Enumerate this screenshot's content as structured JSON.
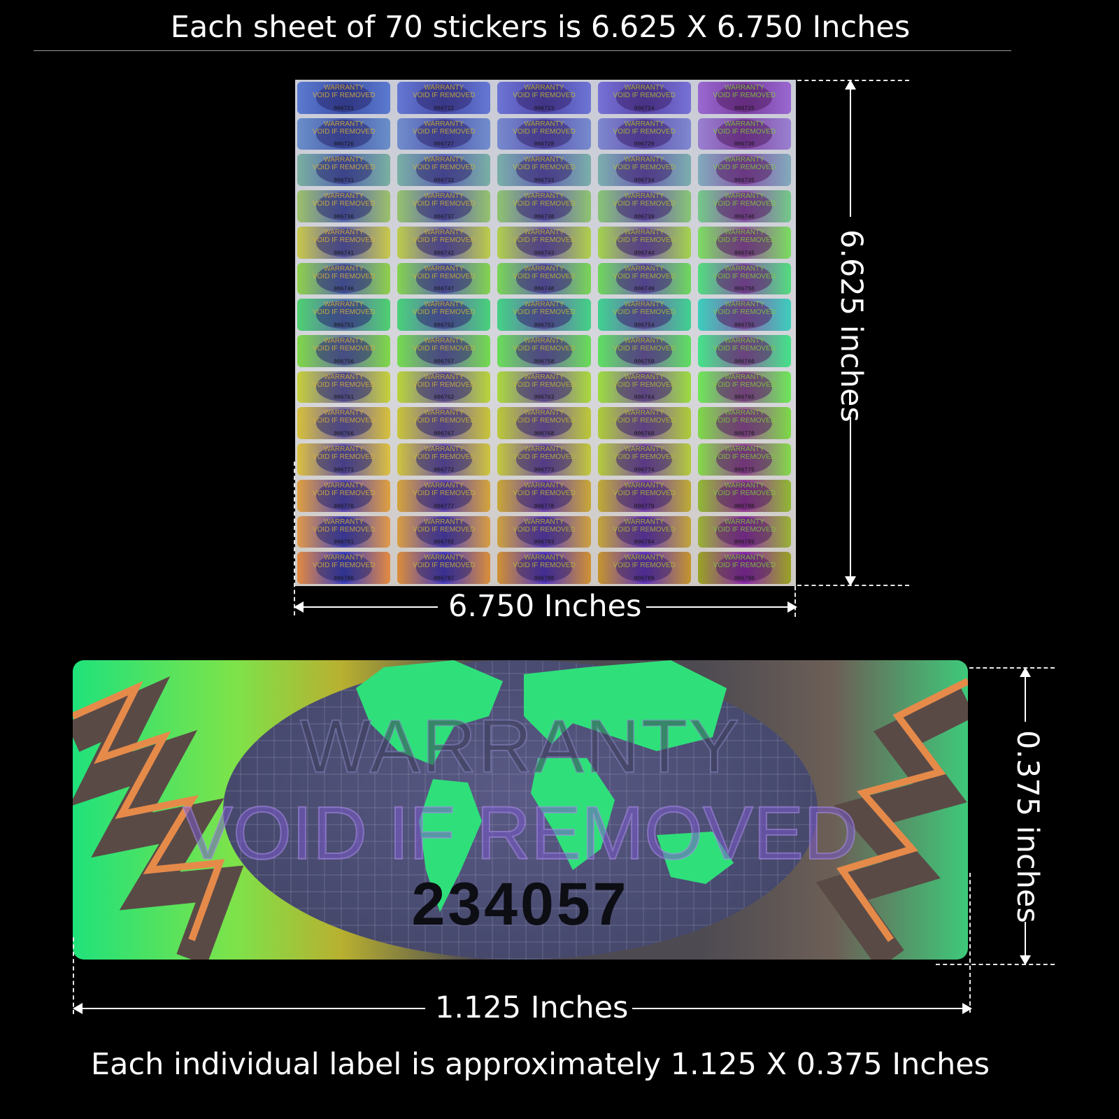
{
  "header": {
    "title": "Each sheet of 70 stickers is 6.625 X 6.750 Inches"
  },
  "sheet": {
    "rows": 14,
    "cols": 5,
    "count": 70,
    "text_line1": "WARRANTY",
    "text_line2": "VOID IF REMOVED",
    "serials": [
      "006721",
      "006722",
      "006723",
      "006724",
      "006725",
      "006726",
      "006727",
      "006728",
      "006729",
      "006730",
      "006731",
      "006732",
      "006733",
      "006734",
      "006735",
      "006736",
      "006737",
      "006738",
      "006739",
      "006740",
      "006741",
      "006742",
      "006743",
      "006744",
      "006745",
      "006746",
      "006747",
      "006748",
      "006749",
      "006750",
      "006751",
      "006752",
      "006753",
      "006754",
      "006755",
      "006756",
      "006757",
      "006758",
      "006759",
      "006760",
      "006761",
      "006762",
      "006763",
      "006764",
      "006765",
      "006766",
      "006767",
      "006768",
      "006769",
      "006770",
      "006771",
      "006772",
      "006773",
      "006774",
      "006775",
      "006776",
      "006777",
      "006778",
      "006779",
      "006780",
      "006781",
      "006782",
      "006783",
      "006784",
      "006785",
      "006786",
      "006787",
      "006788",
      "006789",
      "006790"
    ],
    "width_label": "6.750 Inches",
    "height_label": "6.625 inches"
  },
  "label": {
    "line1": "WARRANTY",
    "line2": "VOID IF REMOVED",
    "serial": "234057",
    "width_label": "1.125 Inches",
    "height_label": "0.375 inches"
  },
  "footer": {
    "caption": "Each individual label is approximately 1.125 X 0.375 Inches"
  },
  "colors": {
    "background": "#000000",
    "text": "#ffffff",
    "hologram_green": "#1fe27b",
    "globe": "#474a6e"
  }
}
